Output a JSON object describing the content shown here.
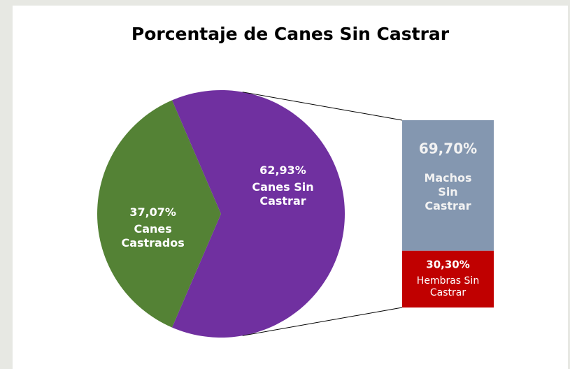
{
  "chart_data": {
    "type": "pie",
    "title": "Porcentaje de Canes Sin Castrar",
    "categories": [
      "Canes Castrados",
      "Canes Sin Castrar"
    ],
    "values": [
      37.07,
      62.93
    ],
    "value_labels": [
      "37,07%",
      "62,93%"
    ],
    "colors": [
      "#548235",
      "#7030a0"
    ],
    "breakdown": {
      "type": "bar",
      "categories": [
        "Machos Sin Castrar",
        "Hembras Sin Castrar"
      ],
      "values": [
        69.7,
        30.3
      ],
      "value_labels": [
        "69,70%",
        "30,30%"
      ],
      "colors": [
        "#8497b0",
        "#c00000"
      ]
    }
  }
}
